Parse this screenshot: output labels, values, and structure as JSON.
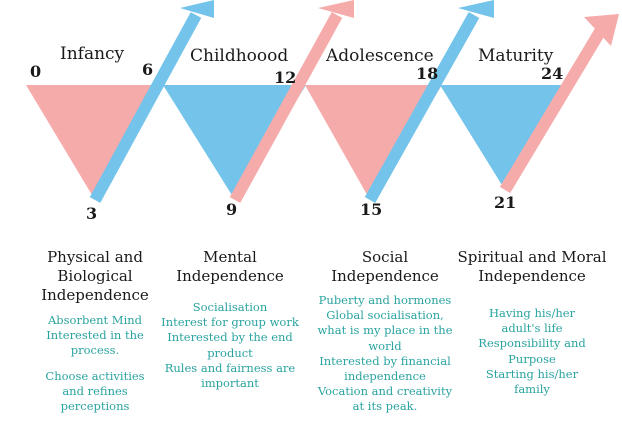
{
  "colors": {
    "pink": "#f6abab",
    "blue": "#74c3ea",
    "teal_text": "#2aa3a0",
    "dark_text": "#1a1a1a"
  },
  "stages": [
    {
      "title": "Infancy"
    },
    {
      "title": "Childhoood"
    },
    {
      "title": "Adolescence"
    },
    {
      "title": "Maturity"
    }
  ],
  "ages": [
    "0",
    "3",
    "6",
    "9",
    "12",
    "15",
    "18",
    "21",
    "24"
  ],
  "columns": [
    {
      "heading": "Physical and\nBiological\nIndependence",
      "items": [
        "Absorbent Mind\nInterested in the\nprocess.",
        "Choose activities\nand refines\nperceptions"
      ]
    },
    {
      "heading": "Mental\nIndependence",
      "items": [
        "Socialisation\nInterest for group work\nInterested by the end\nproduct\nRules and fairness are\nimportant"
      ]
    },
    {
      "heading": "Social\nIndependence",
      "items": [
        "Puberty and hormones\nGlobal socialisation,\nwhat is my place in the\nworld\nInterested by financial\nindependence\nVocation and creativity\nat its peak."
      ]
    },
    {
      "heading": "Spiritual and Moral\nIndependence",
      "items": [
        "Having his/her\nadult's life\nResponsibility and\nPurpose\nStarting his/her\nfamily"
      ]
    }
  ]
}
